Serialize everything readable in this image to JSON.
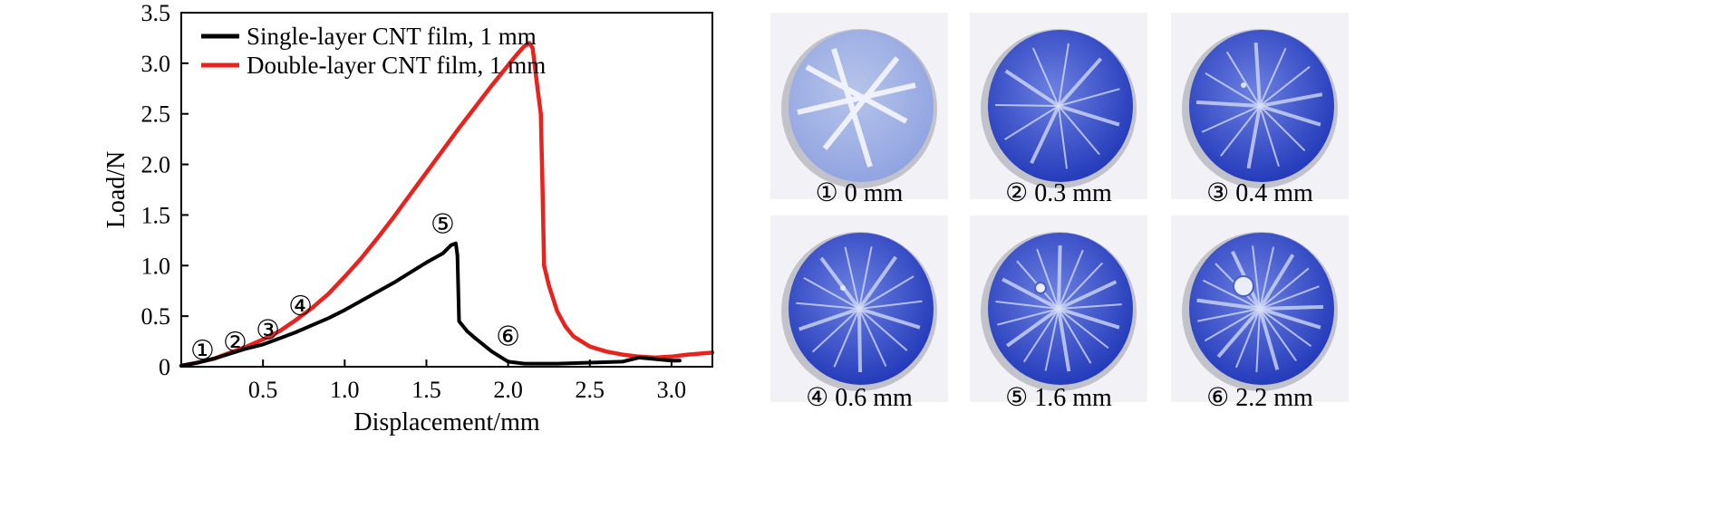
{
  "chart_data": {
    "type": "line",
    "xlabel": "Displacement/mm",
    "ylabel": "Load/N",
    "xlim": [
      0,
      3.25
    ],
    "ylim": [
      0,
      3.5
    ],
    "xticks": [
      0.5,
      1.0,
      1.5,
      2.0,
      2.5,
      3.0
    ],
    "xtick_labels": [
      "0.5",
      "1.0",
      "1.5",
      "2.0",
      "2.5",
      "3.0"
    ],
    "yticks": [
      0,
      0.5,
      1.0,
      1.5,
      2.0,
      2.5,
      3.0,
      3.5
    ],
    "ytick_labels": [
      "0",
      "0.5",
      "1.0",
      "1.5",
      "2.0",
      "2.5",
      "3.0",
      "3.5"
    ],
    "legend_position": "top-left",
    "series": [
      {
        "name": "Single-layer CNT film, 1 mm",
        "color": "#000000",
        "x": [
          0,
          0.1,
          0.2,
          0.3,
          0.4,
          0.5,
          0.6,
          0.7,
          0.8,
          0.9,
          1.0,
          1.1,
          1.2,
          1.3,
          1.4,
          1.5,
          1.6,
          1.65,
          1.68,
          1.69,
          1.7,
          1.75,
          1.8,
          1.9,
          2.0,
          2.1,
          2.3,
          2.5,
          2.7,
          2.8,
          3.0,
          3.05
        ],
        "y": [
          0.01,
          0.04,
          0.08,
          0.13,
          0.18,
          0.22,
          0.28,
          0.34,
          0.41,
          0.48,
          0.56,
          0.65,
          0.74,
          0.83,
          0.93,
          1.03,
          1.12,
          1.2,
          1.22,
          1.1,
          0.45,
          0.35,
          0.28,
          0.15,
          0.05,
          0.03,
          0.03,
          0.04,
          0.05,
          0.09,
          0.06,
          0.06
        ]
      },
      {
        "name": "Double-layer CNT film, 1 mm",
        "color": "#e8221c",
        "x": [
          0,
          0.1,
          0.2,
          0.3,
          0.4,
          0.5,
          0.6,
          0.7,
          0.8,
          0.9,
          1.0,
          1.1,
          1.2,
          1.3,
          1.4,
          1.5,
          1.6,
          1.7,
          1.8,
          1.9,
          2.0,
          2.05,
          2.1,
          2.13,
          2.15,
          2.18,
          2.2,
          2.21,
          2.22,
          2.25,
          2.3,
          2.35,
          2.4,
          2.5,
          2.6,
          2.7,
          2.8,
          2.9,
          3.0,
          3.1,
          3.25
        ],
        "y": [
          0.01,
          0.04,
          0.08,
          0.14,
          0.2,
          0.27,
          0.35,
          0.46,
          0.58,
          0.72,
          0.89,
          1.07,
          1.27,
          1.48,
          1.7,
          1.92,
          2.14,
          2.36,
          2.57,
          2.78,
          2.98,
          3.08,
          3.17,
          3.2,
          3.15,
          2.75,
          2.5,
          1.8,
          1.0,
          0.8,
          0.55,
          0.4,
          0.3,
          0.2,
          0.15,
          0.12,
          0.1,
          0.09,
          0.1,
          0.12,
          0.14
        ]
      }
    ],
    "markers": [
      {
        "label": "①",
        "x": 0.13,
        "y": 0.17
      },
      {
        "label": "②",
        "x": 0.33,
        "y": 0.25
      },
      {
        "label": "③",
        "x": 0.53,
        "y": 0.37
      },
      {
        "label": "④",
        "x": 0.73,
        "y": 0.61
      },
      {
        "label": "⑤",
        "x": 1.6,
        "y": 1.42
      },
      {
        "label": "⑥",
        "x": 2.0,
        "y": 0.31
      }
    ]
  },
  "panels": [
    {
      "caption": "① 0 mm",
      "stage": 0
    },
    {
      "caption": "② 0.3 mm",
      "stage": 1
    },
    {
      "caption": "③ 0.4 mm",
      "stage": 2
    },
    {
      "caption": "④ 0.6 mm",
      "stage": 3
    },
    {
      "caption": "⑤ 1.6 mm",
      "stage": 4
    },
    {
      "caption": "⑥ 2.2 mm",
      "stage": 5
    }
  ],
  "colors": {
    "film_light": "#b6c4ea",
    "film_dark": "#1f36b8",
    "photo_bg": "#f1f1f6"
  }
}
